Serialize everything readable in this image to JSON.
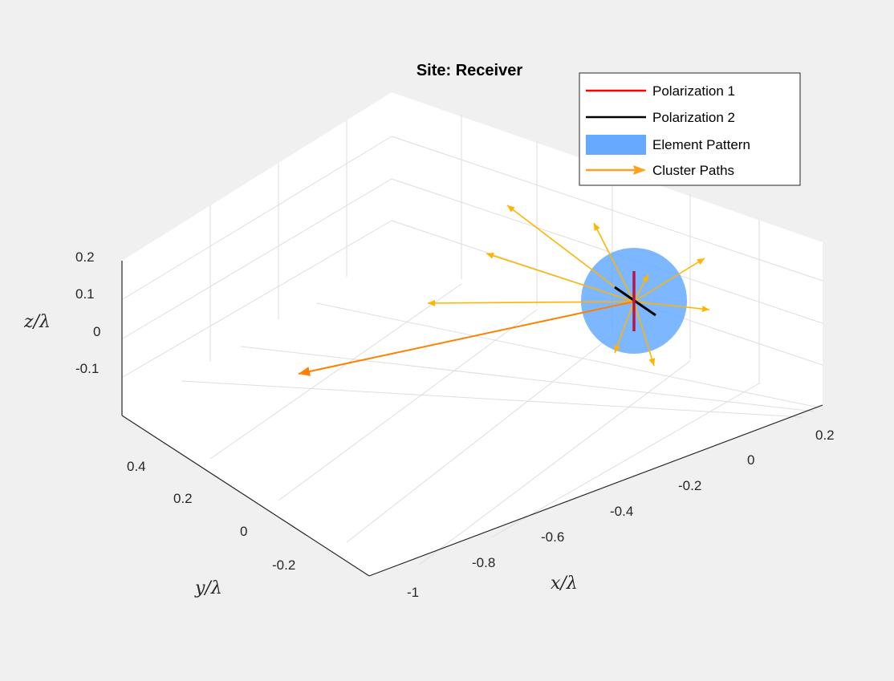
{
  "chart_data": {
    "type": "3d-line",
    "title": "Site: Receiver",
    "xlabel": "x/λ",
    "ylabel": "y/λ",
    "zlabel": "z/λ",
    "x_ticks": [
      "0.2",
      "0",
      "-0.2",
      "-0.4",
      "-0.6",
      "-0.8",
      "-1"
    ],
    "y_ticks": [
      "0.4",
      "0.2",
      "0",
      "-0.2"
    ],
    "z_ticks": [
      "0.2",
      "0.1",
      "0",
      "-0.1"
    ],
    "grid": true,
    "legend": {
      "placement": "top-right",
      "entries": [
        {
          "label": "Polarization 1",
          "color": "#ff0000",
          "style": "line"
        },
        {
          "label": "Polarization 2",
          "color": "#000000",
          "style": "line"
        },
        {
          "label": "Element Pattern",
          "color": "#66aaff",
          "style": "patch"
        },
        {
          "label": "Cluster Paths",
          "color": "#ffa020",
          "style": "arrow"
        }
      ]
    },
    "colors": {
      "background": "#f0f0f0",
      "axes": "#ffffff",
      "grid": "#dcdcdc",
      "cluster_path": "#ffb400",
      "main_path": "#ff8000",
      "pattern": "#66aaff"
    }
  }
}
